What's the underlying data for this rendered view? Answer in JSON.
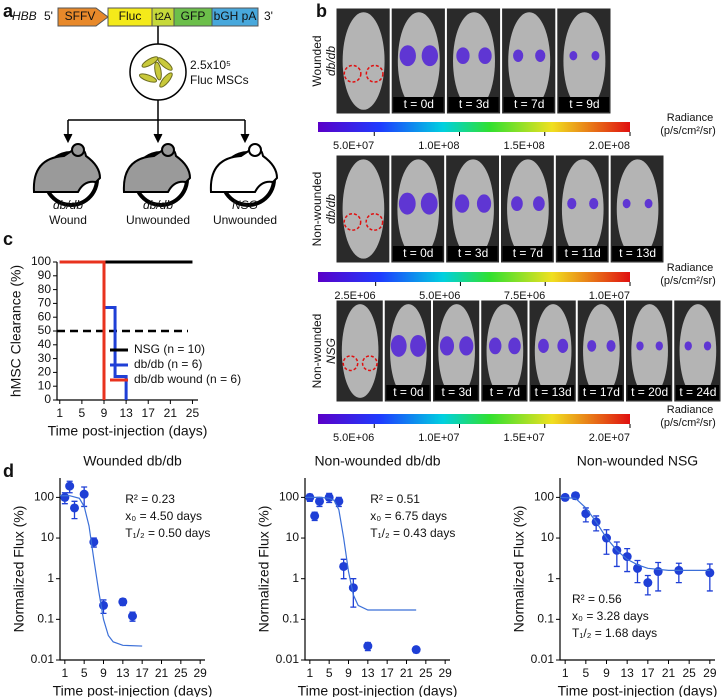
{
  "panels": [
    "a",
    "b",
    "c",
    "d"
  ],
  "diagram": {
    "gene": "HBB",
    "five_prime": "5'",
    "three_prime": "3'",
    "elements": [
      "SFFV",
      "Fluc",
      "t2A",
      "GFP",
      "bGH pA"
    ],
    "cells": [
      "2.5x10⁵",
      "Fluc MSCs"
    ],
    "groups": [
      [
        "db/db",
        "Wound"
      ],
      [
        "db/db",
        "Unwounded"
      ],
      [
        "NSG",
        "Unwounded"
      ]
    ]
  },
  "imaging": {
    "rows": [
      {
        "label": [
          "Wounded",
          "db/db"
        ],
        "times": [
          "t = 0d",
          "t = 3d",
          "t = 7d",
          "t = 9d"
        ],
        "colorbar": {
          "title": "Radiance",
          "unit": "(p/s/cm²/sr)",
          "lim": [
            17000000,
            200000000
          ],
          "ticks": [
            {
              "value": 50000000,
              "label": "5.0E+07"
            },
            {
              "value": 100000000,
              "label": "1.0E+08"
            },
            {
              "value": 150000000,
              "label": "1.5E+08"
            },
            {
              "value": 200000000,
              "label": "2.0E+08"
            }
          ]
        }
      },
      {
        "label": [
          "Non-wounded",
          "db/db"
        ],
        "times": [
          "t = 0d",
          "t = 3d",
          "t = 7d",
          "t = 11d",
          "t = 13d"
        ],
        "colorbar": {
          "title": "Radiance",
          "unit": "(p/s/cm²/sr)",
          "lim": [
            800000,
            10000000
          ],
          "ticks": [
            {
              "value": 2500000,
              "label": "2.5E+06"
            },
            {
              "value": 5000000,
              "label": "5.0E+06"
            },
            {
              "value": 7500000,
              "label": "7.5E+06"
            },
            {
              "value": 10000000,
              "label": "1.0E+07"
            }
          ]
        }
      },
      {
        "label": [
          "Non-wounded",
          "NSG"
        ],
        "times": [
          "t = 0d",
          "t = 3d",
          "t = 7d",
          "t = 13d",
          "t = 17d",
          "t = 20d",
          "t = 24d"
        ],
        "colorbar": {
          "title": "Radiance",
          "unit": "(p/s/cm²/sr)",
          "lim": [
            1700000,
            20000000
          ],
          "ticks": [
            {
              "value": 5000000,
              "label": "5.0E+06"
            },
            {
              "value": 10000000,
              "label": "1.0E+07"
            },
            {
              "value": 15000000,
              "label": "1.5E+07"
            },
            {
              "value": 20000000,
              "label": "2.0E+07"
            }
          ]
        }
      }
    ]
  },
  "chart_data": [
    {
      "type": "line",
      "x_label": "Time post-injection (days)",
      "y_label": "hMSC Clearance (%)",
      "xlim": [
        0.5,
        26
      ],
      "xticks": [
        1,
        5,
        9,
        13,
        17,
        21,
        25
      ],
      "ylim": [
        0,
        100
      ],
      "yticks": [
        0,
        10,
        20,
        30,
        40,
        50,
        60,
        70,
        80,
        90,
        100
      ],
      "reference_line": 50,
      "legend": "lower right",
      "series": [
        {
          "name": "NSG (n = 10)",
          "color": "#000000",
          "x": [
            1,
            25
          ],
          "values": [
            100,
            100
          ]
        },
        {
          "name": "db/db (n = 6)",
          "color": "#1f3fd6",
          "x": [
            1,
            9,
            9,
            11,
            11,
            13,
            13
          ],
          "values": [
            100,
            100,
            67,
            67,
            17,
            17,
            0
          ]
        },
        {
          "name": "db/db wound (n = 6)",
          "color": "#e8321e",
          "x": [
            1,
            9,
            9
          ],
          "values": [
            100,
            100,
            0
          ]
        }
      ]
    },
    {
      "type": "scatter",
      "title": "Wounded  db/db",
      "x_label": "Time post-injection (days)",
      "y_label": "Normalized Flux (%)",
      "log_y": true,
      "xlim": [
        0,
        30
      ],
      "xticks": [
        1,
        5,
        9,
        13,
        17,
        21,
        25,
        29
      ],
      "ylim": [
        0.01,
        300
      ],
      "yticks": [
        0.01,
        0.1,
        1,
        10,
        100
      ],
      "annotations": [
        "R² = 0.23",
        "x₀ = 4.50 days",
        "T₁/₂ = 0.50 days"
      ],
      "annotation_corner": "upper right",
      "series": [
        {
          "color": "#1f3fd6",
          "x": [
            1,
            2,
            3,
            5,
            7,
            9,
            13,
            15
          ],
          "values": [
            100,
            190,
            55,
            120,
            8,
            0.22,
            0.27,
            0.12
          ],
          "errors": [
            30,
            60,
            25,
            60,
            2,
            0.08,
            0.05,
            0.03
          ]
        },
        {
          "color": "#3b6fd8",
          "fit": true,
          "x": [
            0,
            2,
            4,
            5,
            6,
            7,
            8,
            9,
            10,
            11,
            13,
            17
          ],
          "values": [
            110,
            110,
            95,
            60,
            20,
            3,
            0.5,
            0.1,
            0.04,
            0.028,
            0.023,
            0.022
          ]
        }
      ]
    },
    {
      "type": "scatter",
      "title": "Non-wounded db/db",
      "x_label": "Time post-injection (days)",
      "y_label": "Normalized Flux (%)",
      "log_y": true,
      "xlim": [
        0,
        30
      ],
      "xticks": [
        1,
        5,
        9,
        13,
        17,
        21,
        25,
        29
      ],
      "ylim": [
        0.01,
        300
      ],
      "yticks": [
        0.01,
        0.1,
        1,
        10,
        100
      ],
      "annotations": [
        "R² = 0.51",
        "x₀ = 6.75 days",
        "T₁/₂ = 0.43 days"
      ],
      "annotation_corner": "upper right",
      "series": [
        {
          "color": "#1f3fd6",
          "x": [
            1,
            2,
            3,
            5,
            7,
            8,
            10,
            13,
            23
          ],
          "values": [
            100,
            35,
            80,
            100,
            80,
            2,
            0.6,
            0.022,
            0.018
          ],
          "errors": [
            20,
            8,
            20,
            25,
            20,
            1,
            0.4,
            0.005,
            0.003
          ]
        },
        {
          "color": "#3b6fd8",
          "fit": true,
          "x": [
            0,
            3,
            5,
            6,
            7,
            8,
            9,
            10,
            11,
            13,
            23
          ],
          "values": [
            100,
            100,
            95,
            85,
            50,
            10,
            1.5,
            0.4,
            0.22,
            0.17,
            0.17
          ]
        }
      ]
    },
    {
      "type": "scatter",
      "title": "Non-wounded NSG",
      "x_label": "Time post-injection (days)",
      "y_label": "Normalized Flux (%)",
      "log_y": true,
      "xlim": [
        0,
        30
      ],
      "xticks": [
        1,
        5,
        9,
        13,
        17,
        21,
        25,
        29
      ],
      "ylim": [
        0.01,
        300
      ],
      "yticks": [
        0.01,
        0.1,
        1,
        10,
        100
      ],
      "annotations": [
        "R² = 0.56",
        "x₀ = 3.28 days",
        "T₁/₂ = 1.68 days"
      ],
      "annotation_corner": "lower left",
      "series": [
        {
          "color": "#1f3fd6",
          "x": [
            1,
            3,
            5,
            7,
            9,
            11,
            13,
            15,
            17,
            19,
            23,
            29
          ],
          "values": [
            100,
            110,
            40,
            25,
            10,
            5,
            3.5,
            1.8,
            0.8,
            1.5,
            1.6,
            1.4
          ],
          "errors": [
            15,
            20,
            15,
            10,
            6,
            3,
            2,
            1,
            0.4,
            1,
            0.8,
            0.9
          ]
        },
        {
          "color": "#3b6fd8",
          "fit": true,
          "x": [
            0,
            3,
            5,
            7,
            9,
            11,
            13,
            15,
            17,
            21,
            29
          ],
          "values": [
            100,
            95,
            55,
            25,
            10,
            5,
            3,
            2.2,
            1.8,
            1.6,
            1.6
          ]
        }
      ]
    }
  ]
}
